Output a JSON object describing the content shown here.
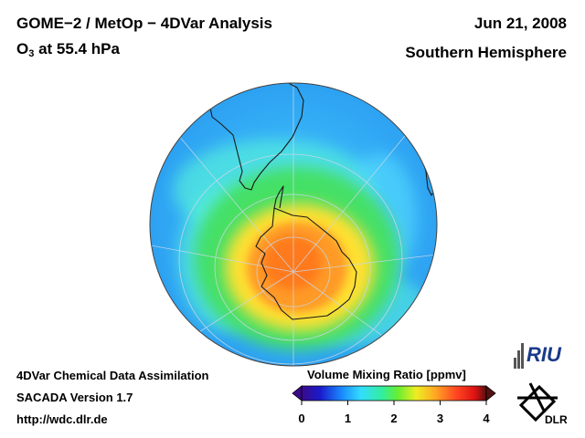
{
  "header": {
    "title_line1": "GOME−2 / MetOp − 4DVar Analysis",
    "title_line2_prefix": "O",
    "title_line2_sub": "3",
    "title_line2_suffix": " at 55.4 hPa",
    "date": "Jun 21, 2008",
    "hemisphere": "Southern Hemisphere"
  },
  "footer": {
    "line1": "4DVar Chemical Data Assimilation",
    "line2": "SACADA Version 1.7",
    "line3": "http://wdc.dlr.de"
  },
  "colorbar": {
    "title": "Volume Mixing Ratio [ppmv]",
    "ticks": [
      "0",
      "1",
      "2",
      "3",
      "4"
    ],
    "range": [
      0,
      4
    ],
    "colors": [
      "#3a0a8a",
      "#1a1acc",
      "#1a8cff",
      "#33ddff",
      "#33ee99",
      "#66ee33",
      "#eeee22",
      "#ffaa22",
      "#ff4422",
      "#dd1111",
      "#551111"
    ]
  },
  "map": {
    "projection": "polar orthographic",
    "hemisphere": "south",
    "variable": "O3 volume mixing ratio",
    "pressure_level_hpa": 55.4,
    "palette": {
      "ocean_background": "#33a8ff",
      "high": "#ff7a22",
      "mid": "#ffdd33",
      "green": "#33ee66",
      "cyan": "#44ddff"
    }
  },
  "logos": {
    "riu": "RIU",
    "dlr": "DLR"
  }
}
